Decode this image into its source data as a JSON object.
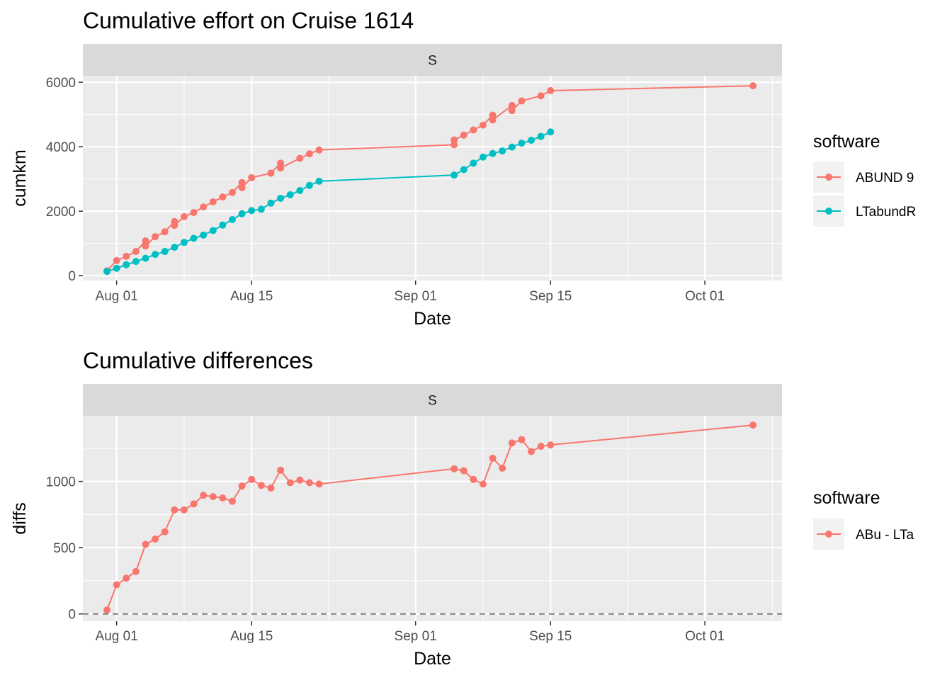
{
  "chart_data": [
    {
      "type": "line",
      "title": "Cumulative effort on Cruise 1614",
      "facet": "S",
      "xlabel": "Date",
      "ylabel": "cumkm",
      "x_ticks": [
        "Aug 01",
        "Aug 15",
        "Sep 01",
        "Sep 15",
        "Oct 01"
      ],
      "y_ticks": [
        0,
        2000,
        4000,
        6000
      ],
      "ylim": [
        -150,
        6200
      ],
      "legend_title": "software",
      "series": [
        {
          "name": "ABUND 9",
          "color": "#F8766D",
          "points": [
            [
              "2021-07-31",
              150
            ],
            [
              "2021-08-01",
              470
            ],
            [
              "2021-08-02",
              600
            ],
            [
              "2021-08-03",
              750
            ],
            [
              "2021-08-04",
              1080
            ],
            [
              "2021-08-04",
              920
            ],
            [
              "2021-08-05",
              1210
            ],
            [
              "2021-08-06",
              1360
            ],
            [
              "2021-08-07",
              1680
            ],
            [
              "2021-08-07",
              1560
            ],
            [
              "2021-08-08",
              1830
            ],
            [
              "2021-08-09",
              1960
            ],
            [
              "2021-08-10",
              2130
            ],
            [
              "2021-08-11",
              2290
            ],
            [
              "2021-08-12",
              2440
            ],
            [
              "2021-08-13",
              2580
            ],
            [
              "2021-08-14",
              2890
            ],
            [
              "2021-08-14",
              2730
            ],
            [
              "2021-08-15",
              3040
            ],
            [
              "2021-08-17",
              3180
            ],
            [
              "2021-08-18",
              3490
            ],
            [
              "2021-08-18",
              3340
            ],
            [
              "2021-08-20",
              3640
            ],
            [
              "2021-08-21",
              3780
            ],
            [
              "2021-08-22",
              3900
            ],
            [
              "2021-09-05",
              4060
            ],
            [
              "2021-09-05",
              4210
            ],
            [
              "2021-09-06",
              4360
            ],
            [
              "2021-09-07",
              4520
            ],
            [
              "2021-09-08",
              4670
            ],
            [
              "2021-09-09",
              4980
            ],
            [
              "2021-09-09",
              4830
            ],
            [
              "2021-09-11",
              5280
            ],
            [
              "2021-09-11",
              5120
            ],
            [
              "2021-09-12",
              5420
            ],
            [
              "2021-09-14",
              5580
            ],
            [
              "2021-09-15",
              5740
            ],
            [
              "2021-10-06",
              5890
            ]
          ]
        },
        {
          "name": "LTabundR",
          "color": "#00BFC4",
          "points": [
            [
              "2021-07-31",
              130
            ],
            [
              "2021-08-01",
              230
            ],
            [
              "2021-08-02",
              340
            ],
            [
              "2021-08-03",
              440
            ],
            [
              "2021-08-04",
              540
            ],
            [
              "2021-08-05",
              660
            ],
            [
              "2021-08-06",
              750
            ],
            [
              "2021-08-07",
              880
            ],
            [
              "2021-08-08",
              1030
            ],
            [
              "2021-08-09",
              1160
            ],
            [
              "2021-08-10",
              1260
            ],
            [
              "2021-08-11",
              1400
            ],
            [
              "2021-08-12",
              1570
            ],
            [
              "2021-08-13",
              1740
            ],
            [
              "2021-08-14",
              1920
            ],
            [
              "2021-08-15",
              2020
            ],
            [
              "2021-08-16",
              2060
            ],
            [
              "2021-08-17",
              2250
            ],
            [
              "2021-08-18",
              2400
            ],
            [
              "2021-08-19",
              2510
            ],
            [
              "2021-08-20",
              2640
            ],
            [
              "2021-08-21",
              2800
            ],
            [
              "2021-08-22",
              2930
            ],
            [
              "2021-09-05",
              3120
            ],
            [
              "2021-09-06",
              3290
            ],
            [
              "2021-09-07",
              3490
            ],
            [
              "2021-09-08",
              3680
            ],
            [
              "2021-09-09",
              3790
            ],
            [
              "2021-09-10",
              3870
            ],
            [
              "2021-09-11",
              3990
            ],
            [
              "2021-09-12",
              4110
            ],
            [
              "2021-09-13",
              4200
            ],
            [
              "2021-09-14",
              4320
            ],
            [
              "2021-09-15",
              4460
            ]
          ]
        }
      ]
    },
    {
      "type": "line",
      "title": "Cumulative differences",
      "facet": "S",
      "xlabel": "Date",
      "ylabel": "diffs",
      "x_ticks": [
        "Aug 01",
        "Aug 15",
        "Sep 01",
        "Sep 15",
        "Oct 01"
      ],
      "y_ticks": [
        0,
        500,
        1000
      ],
      "ylim": [
        -55,
        1495
      ],
      "reference_line": 0,
      "legend_title": "software",
      "series": [
        {
          "name": "ABu - LTa",
          "color": "#F8766D",
          "points": [
            [
              "2021-07-31",
              30
            ],
            [
              "2021-08-01",
              220
            ],
            [
              "2021-08-02",
              270
            ],
            [
              "2021-08-03",
              320
            ],
            [
              "2021-08-04",
              525
            ],
            [
              "2021-08-05",
              565
            ],
            [
              "2021-08-06",
              620
            ],
            [
              "2021-08-07",
              785
            ],
            [
              "2021-08-08",
              785
            ],
            [
              "2021-08-09",
              830
            ],
            [
              "2021-08-10",
              895
            ],
            [
              "2021-08-11",
              885
            ],
            [
              "2021-08-12",
              875
            ],
            [
              "2021-08-13",
              850
            ],
            [
              "2021-08-14",
              965
            ],
            [
              "2021-08-15",
              1015
            ],
            [
              "2021-08-16",
              970
            ],
            [
              "2021-08-17",
              950
            ],
            [
              "2021-08-18",
              1085
            ],
            [
              "2021-08-19",
              990
            ],
            [
              "2021-08-20",
              1010
            ],
            [
              "2021-08-21",
              990
            ],
            [
              "2021-08-22",
              980
            ],
            [
              "2021-09-05",
              1095
            ],
            [
              "2021-09-06",
              1080
            ],
            [
              "2021-09-07",
              1015
            ],
            [
              "2021-09-08",
              980
            ],
            [
              "2021-09-09",
              1175
            ],
            [
              "2021-09-10",
              1100
            ],
            [
              "2021-09-11",
              1290
            ],
            [
              "2021-09-12",
              1315
            ],
            [
              "2021-09-13",
              1225
            ],
            [
              "2021-09-14",
              1265
            ],
            [
              "2021-09-15",
              1275
            ],
            [
              "2021-10-06",
              1425
            ]
          ]
        }
      ]
    }
  ]
}
